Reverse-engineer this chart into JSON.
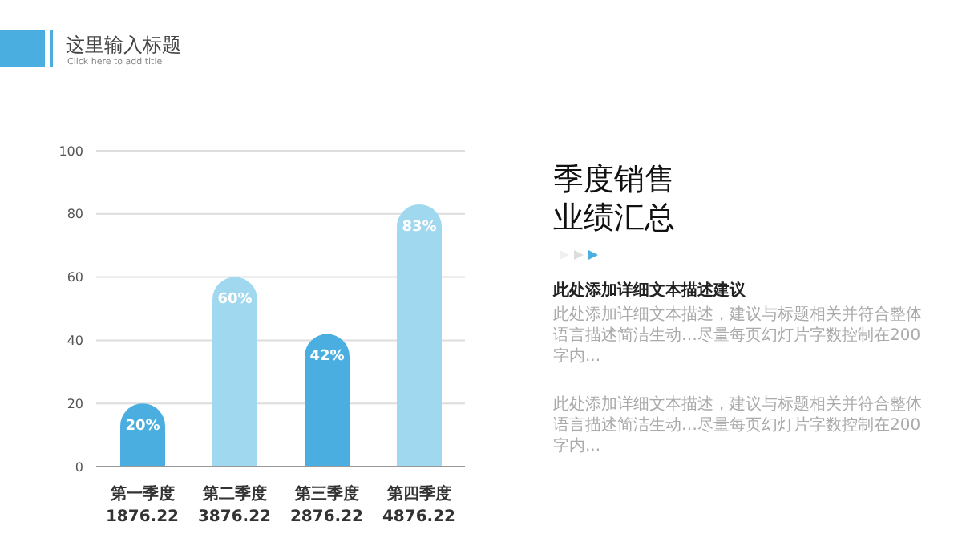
{
  "chart_data": {
    "type": "bar",
    "title": "这里输入标题",
    "subtitle": "Click here to add title",
    "categories": [
      "第一季度\n1876.22",
      "第二季度\n3876.22",
      "第三季度\n2876.22",
      "第四季度\n4876.22"
    ],
    "values": [
      20,
      60,
      42,
      83
    ],
    "colors": [
      "#4aafe0",
      "#a0d8f0",
      "#4aafe0",
      "#a0d8f0"
    ],
    "value_labels": [
      "20%",
      "60%",
      "42%",
      "83%"
    ],
    "ylim": [
      0,
      100
    ],
    "yticks": [
      0,
      20,
      40,
      60,
      80,
      100
    ],
    "grid": "y",
    "legend": false,
    "annotations": [
      "季度销售",
      "业绩汇总",
      "此处添加详细文本描述建议",
      "此处添加详细文本描述，建议与标题相关并符合整体语言描述简洁生动…尽量每页幻灯片字数控制在200字内...",
      "此处添加详细文本描述，建议与标题相关并符合整体语言描述简洁生动…尽量每页幻灯片字数控制在200字内..."
    ]
  }
}
